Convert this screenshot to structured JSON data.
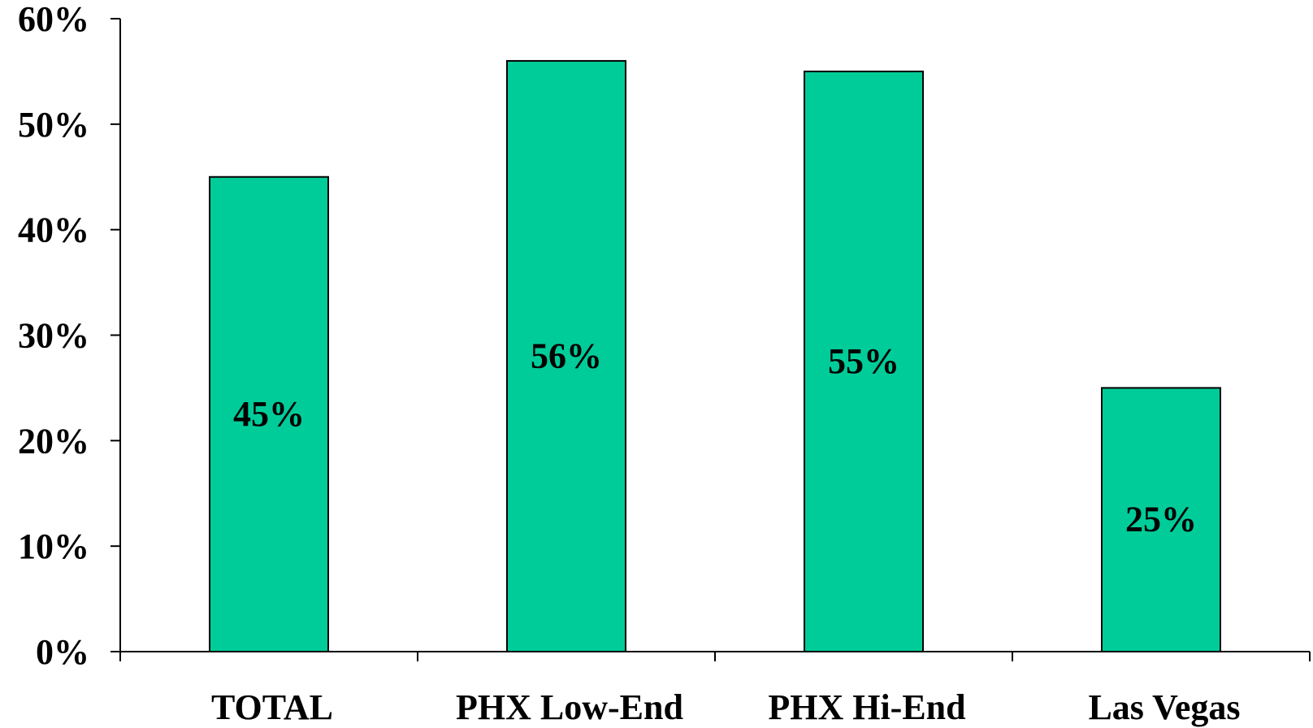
{
  "chart_data": {
    "type": "bar",
    "categories": [
      "TOTAL",
      "PHX Low-End",
      "PHX Hi-End",
      "Las Vegas"
    ],
    "values": [
      45,
      56,
      55,
      25
    ],
    "data_labels": [
      "45%",
      "56%",
      "55%",
      "25%"
    ],
    "title": "",
    "xlabel": "",
    "ylabel": "",
    "ylim": [
      0,
      60
    ],
    "y_ticks": [
      0,
      10,
      20,
      30,
      40,
      50,
      60
    ],
    "y_tick_labels": [
      "0%",
      "10%",
      "20%",
      "30%",
      "40%",
      "50%",
      "60%"
    ],
    "grid": false,
    "legend": "none",
    "bar_color": "#00CC99",
    "bar_outline_color": "#000000"
  }
}
